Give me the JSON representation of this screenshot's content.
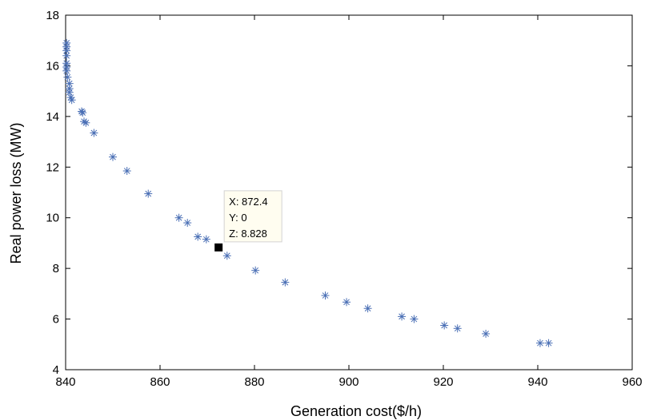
{
  "chart_data": {
    "type": "scatter",
    "title": "",
    "xlabel": "Generation cost($/h)",
    "ylabel": "Real power loss (MW)",
    "xlim": [
      840,
      960
    ],
    "ylim": [
      4,
      18
    ],
    "xticks": [
      840,
      860,
      880,
      900,
      920,
      940,
      960
    ],
    "yticks": [
      4,
      6,
      8,
      10,
      12,
      14,
      16,
      18
    ],
    "grid": false,
    "marker": "asterisk",
    "marker_color": "#4a6fb5",
    "points": [
      {
        "x": 840.2,
        "y": 16.9
      },
      {
        "x": 840.2,
        "y": 16.75
      },
      {
        "x": 840.2,
        "y": 16.6
      },
      {
        "x": 840.2,
        "y": 16.4
      },
      {
        "x": 840.2,
        "y": 16.1
      },
      {
        "x": 840.2,
        "y": 15.95
      },
      {
        "x": 840.2,
        "y": 15.8
      },
      {
        "x": 840.4,
        "y": 15.55
      },
      {
        "x": 840.8,
        "y": 15.3
      },
      {
        "x": 840.8,
        "y": 15.1
      },
      {
        "x": 840.8,
        "y": 14.95
      },
      {
        "x": 841.1,
        "y": 14.75
      },
      {
        "x": 841.3,
        "y": 14.65
      },
      {
        "x": 843.4,
        "y": 14.2
      },
      {
        "x": 843.6,
        "y": 14.15
      },
      {
        "x": 843.9,
        "y": 13.8
      },
      {
        "x": 844.3,
        "y": 13.75
      },
      {
        "x": 846.0,
        "y": 13.35
      },
      {
        "x": 850.0,
        "y": 12.4
      },
      {
        "x": 853.0,
        "y": 11.85
      },
      {
        "x": 857.5,
        "y": 10.95
      },
      {
        "x": 864.0,
        "y": 10.0
      },
      {
        "x": 865.8,
        "y": 9.8
      },
      {
        "x": 868.0,
        "y": 9.25
      },
      {
        "x": 869.8,
        "y": 9.15
      },
      {
        "x": 874.2,
        "y": 8.5
      },
      {
        "x": 880.2,
        "y": 7.92
      },
      {
        "x": 886.5,
        "y": 7.45
      },
      {
        "x": 895.0,
        "y": 6.93
      },
      {
        "x": 899.5,
        "y": 6.67
      },
      {
        "x": 904.0,
        "y": 6.42
      },
      {
        "x": 911.2,
        "y": 6.1
      },
      {
        "x": 913.8,
        "y": 6.0
      },
      {
        "x": 920.2,
        "y": 5.75
      },
      {
        "x": 923.0,
        "y": 5.63
      },
      {
        "x": 929.0,
        "y": 5.42
      },
      {
        "x": 940.5,
        "y": 5.05
      },
      {
        "x": 942.3,
        "y": 5.05
      }
    ],
    "annotation": {
      "x": 872.4,
      "y": 8.828,
      "lines": [
        "X: 872.4",
        "Y: 0",
        "Z: 8.828"
      ]
    }
  }
}
